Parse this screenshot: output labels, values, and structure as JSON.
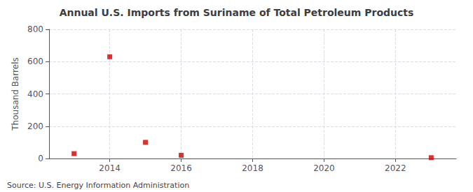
{
  "chart_data": {
    "type": "scatter",
    "title": "Annual U.S. Imports from Suriname of Total Petroleum Products",
    "ylabel": "Thousand Barrels",
    "annotations": [
      "Source: U.S. Energy Information Administration"
    ],
    "x": [
      2013,
      2014,
      2015,
      2016,
      2023
    ],
    "values": [
      30,
      630,
      100,
      20,
      5
    ],
    "color": "#cc0000",
    "marker": "square",
    "xlim": [
      2012.3,
      2023.7
    ],
    "xticks": [
      2014,
      2016,
      2018,
      2020,
      2022
    ],
    "ylim": [
      0,
      800
    ],
    "yticks": [
      0,
      200,
      400,
      600,
      800
    ],
    "grid": true
  }
}
